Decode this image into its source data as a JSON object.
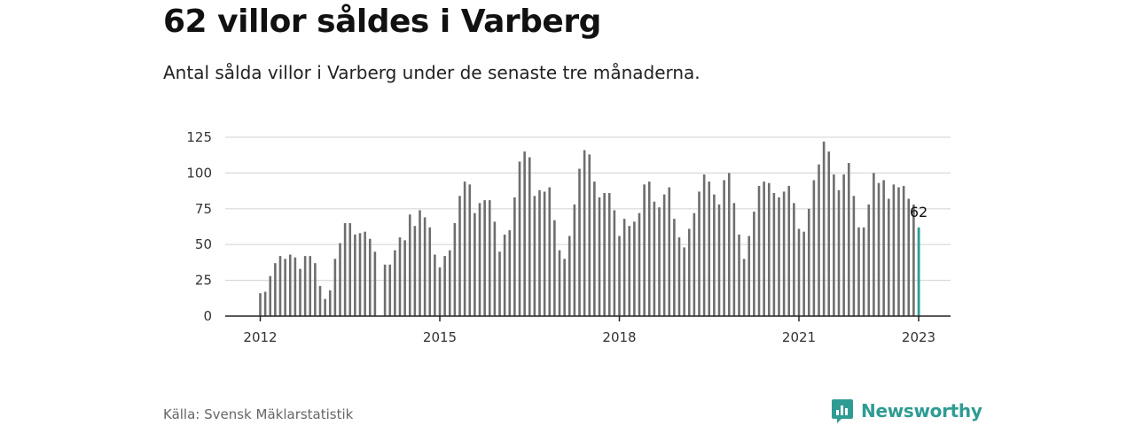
{
  "title": "62 villor såldes i Varberg",
  "subtitle": "Antal sålda villor i Varberg under de senaste tre månaderna.",
  "source": "Källa: Svensk Mäklarstatistik",
  "brand": "Newsworthy",
  "colors": {
    "bar": "#6e6e6e",
    "highlight": "#2e9c93",
    "grid": "#d9d9d9",
    "axis": "#222222",
    "brand": "#2e9c93"
  },
  "chart_data": {
    "type": "bar",
    "start_month": "2012-01",
    "values": [
      16,
      17,
      28,
      37,
      42,
      40,
      43,
      41,
      33,
      42,
      42,
      37,
      21,
      12,
      18,
      40,
      51,
      65,
      65,
      57,
      58,
      59,
      54,
      45,
      null,
      36,
      36,
      46,
      55,
      53,
      71,
      63,
      74,
      69,
      62,
      43,
      34,
      42,
      46,
      65,
      84,
      94,
      92,
      72,
      79,
      81,
      81,
      66,
      45,
      57,
      60,
      83,
      108,
      115,
      111,
      84,
      88,
      87,
      90,
      67,
      46,
      40,
      56,
      78,
      103,
      116,
      113,
      94,
      83,
      86,
      86,
      74,
      56,
      68,
      63,
      66,
      72,
      92,
      94,
      80,
      76,
      85,
      90,
      68,
      55,
      48,
      61,
      72,
      87,
      99,
      94,
      85,
      78,
      95,
      100,
      79,
      57,
      40,
      56,
      73,
      91,
      94,
      93,
      86,
      83,
      87,
      91,
      79,
      61,
      59,
      75,
      95,
      106,
      122,
      115,
      99,
      88,
      99,
      107,
      84,
      62,
      62,
      78,
      100,
      93,
      95,
      82,
      92,
      90,
      91,
      82,
      78,
      62
    ],
    "x_ticks": [
      "2012",
      "2015",
      "2018",
      "2021",
      "2023"
    ],
    "x_tick_months": [
      0,
      36,
      72,
      108,
      132
    ],
    "y_ticks": [
      "0",
      "25",
      "50",
      "75",
      "100",
      "125"
    ],
    "ylim": [
      0,
      125
    ],
    "highlight_label": "62",
    "grid": true
  }
}
